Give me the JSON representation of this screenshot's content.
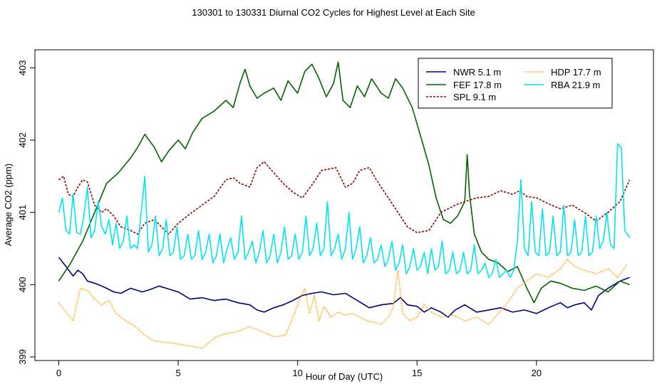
{
  "chart_data": {
    "type": "line",
    "title": "130301  to  130331 Diurnal CO2 Cycles for Highest Level at Each Site",
    "xlabel": "Hour of Day (UTC)",
    "ylabel": "Average CO2 (ppm)",
    "xlim": [
      -1,
      24.9
    ],
    "ylim": [
      398.95,
      403.25
    ],
    "x_ticks": [
      0,
      5,
      10,
      15,
      20
    ],
    "y_ticks": [
      399,
      400,
      401,
      402,
      403
    ],
    "grid": false,
    "legend_position": "top-right",
    "series": [
      {
        "name": "NWR  5.1 m",
        "color": "#000080",
        "style": "solid",
        "x": [
          0,
          0.3,
          0.6,
          0.8,
          1,
          1.2,
          1.5,
          1.8,
          2,
          2.3,
          2.6,
          3,
          3.5,
          3.8,
          4.2,
          4.5,
          5,
          5.5,
          6,
          6.5,
          7,
          7.5,
          8,
          8.3,
          8.6,
          9,
          9.4,
          9.8,
          10.2,
          10.6,
          11,
          11.5,
          12,
          12.5,
          13,
          13.5,
          14,
          14.3,
          14.6,
          15,
          15.3,
          15.6,
          16,
          16.3,
          16.6,
          17,
          17.5,
          18,
          18.5,
          19,
          19.5,
          20,
          20.5,
          21,
          21.3,
          21.6,
          22,
          22.3,
          22.6,
          23,
          23.5,
          23.9
        ],
        "y": [
          400.38,
          400.25,
          400.12,
          400.2,
          400.15,
          400.05,
          400.02,
          399.98,
          399.95,
          399.9,
          399.88,
          399.95,
          399.9,
          399.93,
          399.98,
          399.95,
          399.9,
          399.8,
          399.82,
          399.78,
          399.8,
          399.75,
          399.72,
          399.65,
          399.62,
          399.68,
          399.72,
          399.78,
          399.85,
          399.88,
          399.9,
          399.86,
          399.88,
          399.78,
          399.68,
          399.72,
          399.74,
          399.82,
          399.72,
          399.7,
          399.62,
          399.68,
          399.62,
          399.55,
          399.65,
          399.72,
          399.62,
          399.65,
          399.68,
          399.62,
          399.65,
          399.6,
          399.68,
          399.75,
          399.68,
          399.72,
          399.75,
          399.65,
          399.85,
          399.95,
          400.05,
          400.1
        ]
      },
      {
        "name": "FEF  17.8 m",
        "color": "#006400",
        "style": "solid",
        "x": [
          0,
          0.5,
          1,
          1.5,
          2,
          2.5,
          3,
          3.3,
          3.6,
          4,
          4.3,
          4.6,
          5,
          5.3,
          5.6,
          6,
          6.5,
          7,
          7.3,
          7.6,
          7.8,
          8,
          8.3,
          8.6,
          9,
          9.3,
          9.6,
          10,
          10.3,
          10.6,
          10.9,
          11.2,
          11.5,
          11.7,
          11.9,
          12.2,
          12.5,
          12.8,
          13.1,
          13.5,
          13.8,
          14.1,
          14.4,
          14.8,
          15.2,
          15.5,
          15.8,
          16.1,
          16.4,
          16.7,
          17,
          17.1,
          17.2,
          17.4,
          17.7,
          18,
          18.4,
          18.8,
          19.2,
          19.6,
          19.9,
          20.2,
          20.6,
          21,
          21.5,
          22,
          22.5,
          23,
          23.5,
          23.9
        ],
        "y": [
          400.05,
          400.3,
          400.6,
          401.0,
          401.4,
          401.55,
          401.75,
          401.9,
          402.08,
          401.9,
          401.7,
          401.85,
          402.0,
          401.88,
          402.1,
          402.3,
          402.4,
          402.55,
          402.45,
          402.8,
          402.98,
          402.75,
          402.58,
          402.65,
          402.72,
          402.55,
          402.82,
          402.65,
          402.95,
          403.05,
          402.85,
          402.6,
          402.78,
          403.08,
          402.55,
          402.45,
          402.75,
          402.6,
          402.85,
          402.65,
          402.58,
          402.85,
          402.72,
          402.45,
          402.0,
          401.65,
          401.2,
          400.9,
          400.85,
          400.95,
          401.15,
          401.8,
          401.25,
          400.7,
          400.45,
          400.35,
          400.3,
          400.18,
          400.25,
          399.95,
          399.75,
          399.95,
          400.05,
          400.02,
          399.95,
          399.92,
          399.98,
          399.9,
          400.05,
          400.0
        ]
      },
      {
        "name": "SPL  9.1 m",
        "color": "#8B0000",
        "style": "dashed",
        "x": [
          0,
          0.2,
          0.4,
          0.6,
          0.8,
          1,
          1.2,
          1.5,
          1.8,
          2,
          2.3,
          2.6,
          3,
          3.3,
          3.6,
          4,
          4.3,
          4.6,
          5,
          5.5,
          6,
          6.5,
          7,
          7.3,
          7.6,
          8,
          8.3,
          8.6,
          9,
          9.4,
          9.8,
          10.2,
          10.6,
          11,
          11.3,
          11.6,
          12,
          12.3,
          12.6,
          13,
          13.3,
          13.6,
          14,
          14.3,
          14.6,
          15,
          15.5,
          16,
          16.3,
          16.6,
          17,
          17.5,
          18,
          18.5,
          19,
          19.3,
          19.6,
          20,
          20.5,
          21,
          21.5,
          22,
          22.5,
          23,
          23.5,
          23.9
        ],
        "y": [
          401.45,
          401.5,
          401.25,
          401.22,
          401.35,
          401.45,
          401.42,
          401.1,
          401.0,
          401.05,
          400.95,
          400.8,
          400.75,
          400.7,
          400.85,
          400.9,
          400.8,
          400.7,
          400.85,
          400.98,
          401.1,
          401.22,
          401.45,
          401.48,
          401.4,
          401.35,
          401.62,
          401.7,
          401.55,
          401.4,
          401.28,
          401.2,
          401.38,
          401.58,
          401.6,
          401.62,
          401.35,
          401.4,
          401.58,
          401.62,
          401.45,
          401.3,
          401.1,
          400.95,
          400.8,
          400.72,
          400.75,
          401.0,
          401.05,
          401.1,
          401.15,
          401.2,
          401.22,
          401.3,
          401.25,
          401.3,
          401.22,
          401.2,
          401.12,
          401.05,
          401.1,
          401.0,
          400.88,
          401.0,
          401.15,
          401.45
        ]
      },
      {
        "name": "HDP  17.7 m",
        "color": "#FFA500",
        "style": "dotted",
        "x": [
          0,
          0.3,
          0.6,
          0.9,
          1.2,
          1.5,
          1.8,
          2.1,
          2.4,
          2.8,
          3.2,
          3.6,
          4,
          4.5,
          5,
          5.5,
          6,
          6.3,
          6.6,
          7,
          7.5,
          8,
          8.5,
          9,
          9.5,
          9.8,
          10.1,
          10.3,
          10.5,
          10.7,
          10.9,
          11.1,
          11.4,
          11.7,
          12,
          12.3,
          12.6,
          12.9,
          13.2,
          13.5,
          13.8,
          14.0,
          14.2,
          14.4,
          14.7,
          15,
          15.3,
          15.6,
          16,
          16.5,
          17,
          17.5,
          18,
          18.4,
          18.8,
          19.2,
          19.6,
          20,
          20.5,
          21,
          21.3,
          21.6,
          22,
          22.5,
          23,
          23.4,
          23.8
        ],
        "y": [
          399.75,
          399.62,
          399.5,
          399.95,
          399.92,
          399.8,
          399.72,
          399.78,
          399.6,
          399.5,
          399.42,
          399.3,
          399.22,
          399.2,
          399.18,
          399.15,
          399.12,
          399.2,
          399.28,
          399.32,
          399.35,
          399.42,
          399.35,
          399.28,
          399.3,
          399.55,
          399.8,
          399.95,
          399.6,
          399.85,
          399.5,
          399.7,
          399.55,
          399.62,
          399.58,
          399.6,
          399.55,
          399.5,
          399.48,
          399.45,
          399.55,
          399.68,
          400.2,
          399.6,
          399.5,
          399.55,
          399.72,
          399.62,
          399.55,
          399.58,
          399.5,
          399.55,
          399.45,
          399.6,
          399.75,
          399.95,
          400.05,
          400.15,
          400.1,
          400.22,
          400.35,
          400.25,
          400.2,
          400.15,
          400.22,
          400.1,
          400.28
        ]
      },
      {
        "name": "RBA  21.9 m",
        "color": "#00E5EE",
        "style": "solid",
        "x": [
          0,
          0.15,
          0.3,
          0.45,
          0.6,
          0.75,
          0.9,
          1.05,
          1.2,
          1.35,
          1.5,
          1.65,
          1.8,
          1.95,
          2.1,
          2.25,
          2.4,
          2.55,
          2.7,
          2.85,
          3.0,
          3.15,
          3.3,
          3.45,
          3.6,
          3.75,
          3.9,
          4.05,
          4.2,
          4.35,
          4.5,
          4.65,
          4.8,
          4.95,
          5.1,
          5.25,
          5.4,
          5.55,
          5.7,
          5.85,
          6.0,
          6.15,
          6.3,
          6.45,
          6.6,
          6.75,
          6.9,
          7.05,
          7.2,
          7.35,
          7.5,
          7.65,
          7.8,
          7.95,
          8.1,
          8.25,
          8.4,
          8.55,
          8.7,
          8.85,
          9.0,
          9.15,
          9.3,
          9.45,
          9.6,
          9.75,
          9.9,
          10.05,
          10.2,
          10.35,
          10.5,
          10.65,
          10.8,
          10.95,
          11.1,
          11.25,
          11.4,
          11.55,
          11.7,
          11.85,
          12.0,
          12.15,
          12.3,
          12.45,
          12.6,
          12.75,
          12.9,
          13.05,
          13.2,
          13.35,
          13.5,
          13.65,
          13.8,
          13.95,
          14.1,
          14.25,
          14.4,
          14.55,
          14.7,
          14.85,
          15.0,
          15.15,
          15.3,
          15.45,
          15.6,
          15.75,
          15.9,
          16.05,
          16.2,
          16.35,
          16.5,
          16.65,
          16.8,
          16.95,
          17.1,
          17.25,
          17.4,
          17.55,
          17.7,
          17.85,
          18.0,
          18.15,
          18.3,
          18.45,
          18.6,
          18.75,
          18.9,
          19.05,
          19.2,
          19.35,
          19.5,
          19.65,
          19.8,
          19.95,
          20.1,
          20.25,
          20.4,
          20.55,
          20.7,
          20.85,
          21.0,
          21.15,
          21.3,
          21.45,
          21.6,
          21.75,
          21.9,
          22.05,
          22.2,
          22.35,
          22.5,
          22.65,
          22.8,
          22.95,
          23.1,
          23.25,
          23.4,
          23.55,
          23.7,
          23.9
        ],
        "y": [
          401.0,
          401.2,
          400.75,
          400.7,
          401.25,
          400.72,
          400.7,
          400.95,
          401.35,
          400.65,
          400.75,
          401.15,
          400.8,
          400.7,
          400.9,
          400.55,
          400.85,
          400.5,
          400.6,
          400.95,
          400.5,
          400.55,
          400.5,
          401.0,
          401.5,
          400.45,
          400.55,
          400.95,
          400.4,
          400.5,
          400.9,
          400.4,
          400.45,
          400.8,
          400.35,
          400.4,
          400.7,
          400.35,
          400.4,
          400.75,
          400.35,
          400.45,
          400.7,
          400.3,
          400.4,
          400.7,
          400.3,
          400.5,
          400.65,
          400.35,
          400.45,
          400.95,
          400.35,
          400.45,
          400.6,
          400.3,
          400.45,
          400.75,
          400.3,
          400.4,
          400.7,
          400.3,
          400.45,
          400.8,
          400.35,
          400.4,
          400.7,
          400.35,
          400.45,
          400.95,
          400.4,
          400.5,
          400.85,
          400.4,
          400.5,
          401.15,
          400.4,
          400.5,
          400.7,
          400.35,
          400.5,
          401.0,
          400.35,
          400.5,
          400.8,
          400.3,
          400.4,
          400.65,
          400.3,
          400.35,
          400.55,
          400.25,
          400.35,
          400.6,
          400.2,
          400.3,
          400.55,
          400.15,
          400.25,
          400.5,
          400.2,
          400.25,
          400.45,
          400.15,
          400.5,
          400.2,
          400.25,
          400.6,
          400.15,
          400.2,
          400.45,
          400.15,
          400.2,
          400.45,
          400.15,
          400.2,
          400.55,
          400.15,
          400.2,
          400.3,
          400.1,
          400.15,
          400.35,
          400.1,
          400.15,
          400.2,
          400.1,
          400.2,
          400.6,
          401.45,
          400.5,
          400.4,
          401.15,
          400.45,
          400.4,
          401.05,
          400.4,
          400.45,
          400.95,
          400.4,
          400.45,
          401.1,
          400.4,
          400.45,
          400.9,
          400.4,
          400.45,
          400.95,
          400.4,
          400.45,
          400.95,
          400.5,
          400.6,
          401.0,
          400.55,
          400.5,
          401.95,
          401.9,
          400.75,
          400.65
        ]
      }
    ]
  }
}
